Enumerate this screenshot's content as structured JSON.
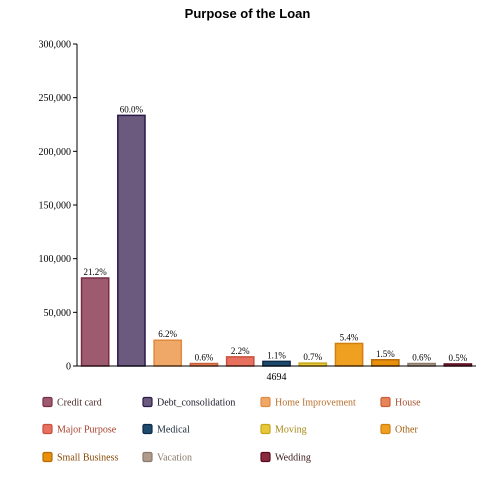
{
  "chart_data": {
    "type": "bar",
    "title": "Purpose of the Loan",
    "xlabel": "",
    "ylabel": "",
    "x_tick_label": "4694",
    "ylim": [
      0,
      300000
    ],
    "yticks": [
      "0",
      "50,000",
      "100,000",
      "150,000",
      "200,000",
      "250,000",
      "300,000"
    ],
    "legend_position": "bottom",
    "grid": false,
    "series": [
      {
        "name": "Credit card",
        "value": 82000,
        "label": "21.2%",
        "color": "#9e5a6e",
        "border": "#7a2e46",
        "text_color": "#4a2a2a"
      },
      {
        "name": "Debt_consolidation",
        "value": 233500,
        "label": "60.0%",
        "color": "#6b5a7e",
        "border": "#2a1a4a",
        "text_color": "#1a1a2a"
      },
      {
        "name": "Home Improvement",
        "value": 24000,
        "label": "6.2%",
        "color": "#f0a868",
        "border": "#e08a40",
        "text_color": "#b8702e"
      },
      {
        "name": "House",
        "value": 2300,
        "label": "0.6%",
        "color": "#e8845a",
        "border": "#c8603a",
        "text_color": "#a8502e"
      },
      {
        "name": "Major Purpose",
        "value": 8500,
        "label": "2.2%",
        "color": "#e8705e",
        "border": "#c8503e",
        "text_color": "#a8402e"
      },
      {
        "name": "Medical",
        "value": 4300,
        "label": "1.1%",
        "color": "#1e4a6e",
        "border": "#0e2a4a",
        "text_color": "#1a2a3a"
      },
      {
        "name": "Moving",
        "value": 2700,
        "label": "0.7%",
        "color": "#e8c838",
        "border": "#c8a818",
        "text_color": "#a88818"
      },
      {
        "name": "Other",
        "value": 21000,
        "label": "5.4%",
        "color": "#f0a020",
        "border": "#d08010",
        "text_color": "#a06010"
      },
      {
        "name": "Small Business",
        "value": 5800,
        "label": "1.5%",
        "color": "#e8900a",
        "border": "#b86a0a",
        "text_color": "#8a4a0a"
      },
      {
        "name": "Vacation",
        "value": 2300,
        "label": "0.6%",
        "color": "#b09a8a",
        "border": "#8a7a6a",
        "text_color": "#8a7a6a"
      },
      {
        "name": "Wedding",
        "value": 1900,
        "label": "0.5%",
        "color": "#8a2a3e",
        "border": "#5a0a1e",
        "text_color": "#3a1a1a"
      }
    ]
  }
}
